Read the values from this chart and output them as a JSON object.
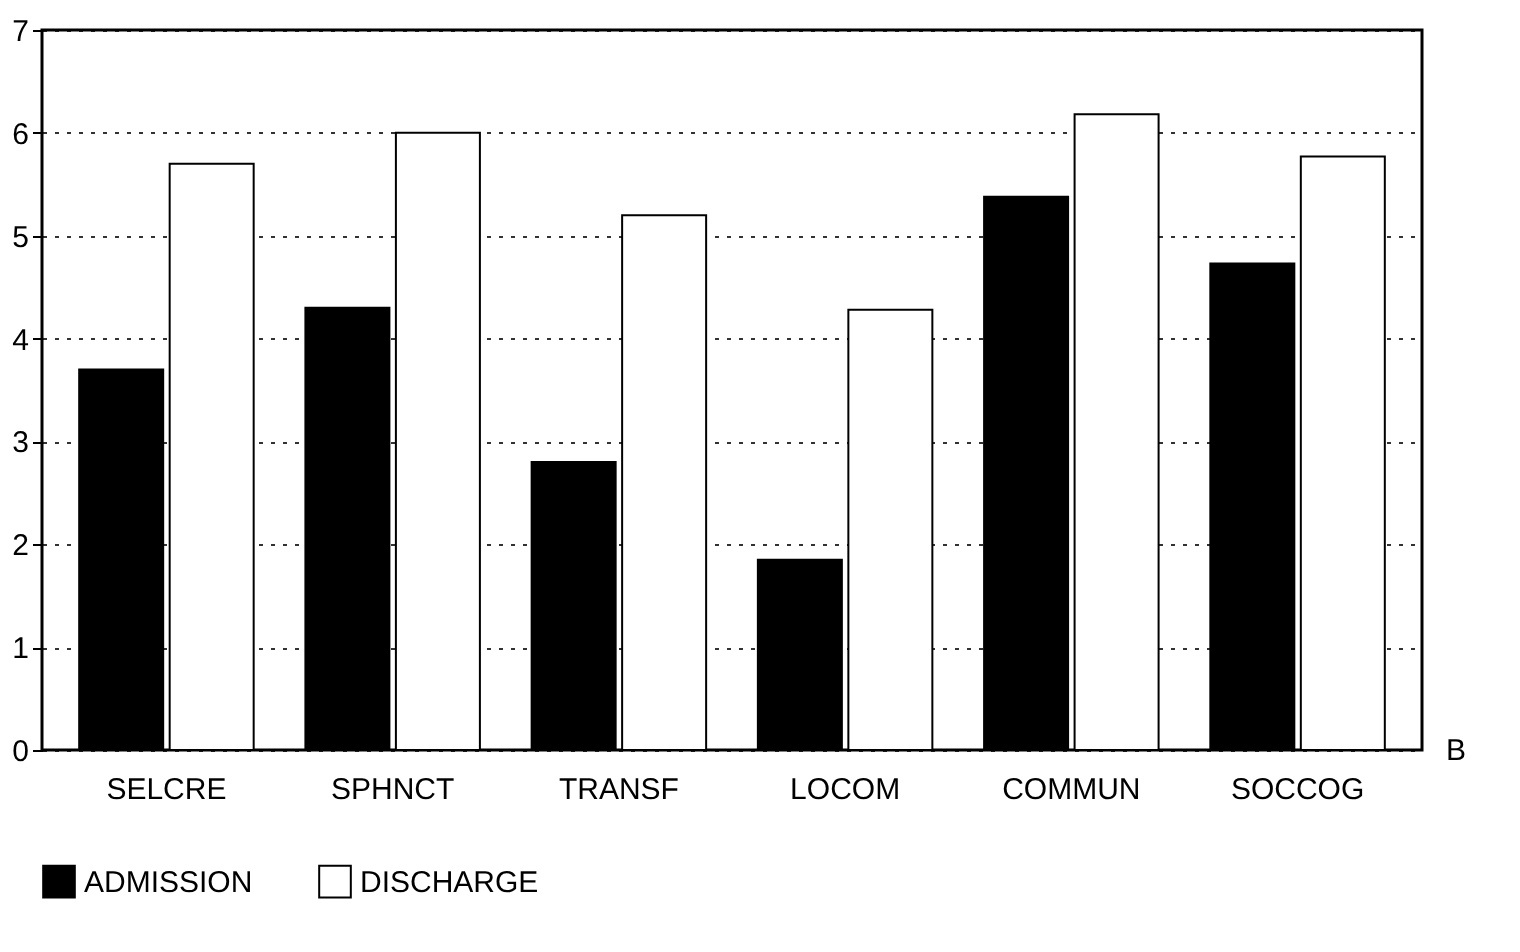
{
  "chart_data": {
    "type": "bar",
    "categories": [
      "SELCRE",
      "SPHNCT",
      "TRANSF",
      "LOCOM",
      "COMMUN",
      "SOCCOG"
    ],
    "series": [
      {
        "name": "ADMISSION",
        "color": "#000000",
        "values": [
          3.7,
          4.3,
          2.8,
          1.85,
          5.38,
          4.73
        ]
      },
      {
        "name": "DISCHARGE",
        "color": "#ffffff",
        "values": [
          5.7,
          6.0,
          5.2,
          4.28,
          6.18,
          5.77
        ]
      }
    ],
    "ylim": [
      0,
      7
    ],
    "yticks": [
      0,
      1,
      2,
      3,
      4,
      5,
      6,
      7
    ],
    "grid": "y",
    "legend": "bottom",
    "annotations": [
      "B"
    ]
  }
}
